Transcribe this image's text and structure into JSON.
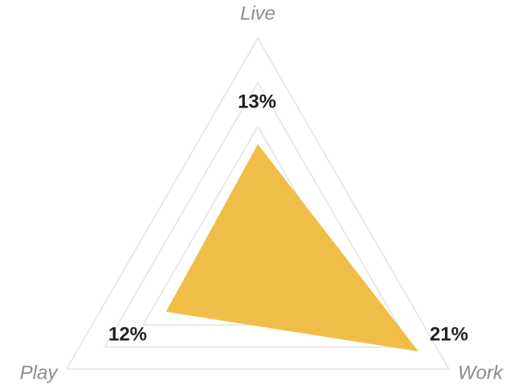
{
  "chart_data": {
    "type": "radar",
    "categories": [
      "Live",
      "Work",
      "Play"
    ],
    "values": [
      13,
      21,
      12
    ],
    "value_labels": [
      "13%",
      "21%",
      "12%"
    ],
    "color": "#f0be48",
    "rlim": [
      0,
      25
    ],
    "rticks": [
      0,
      5,
      10,
      15,
      20,
      25
    ],
    "grid": true
  }
}
